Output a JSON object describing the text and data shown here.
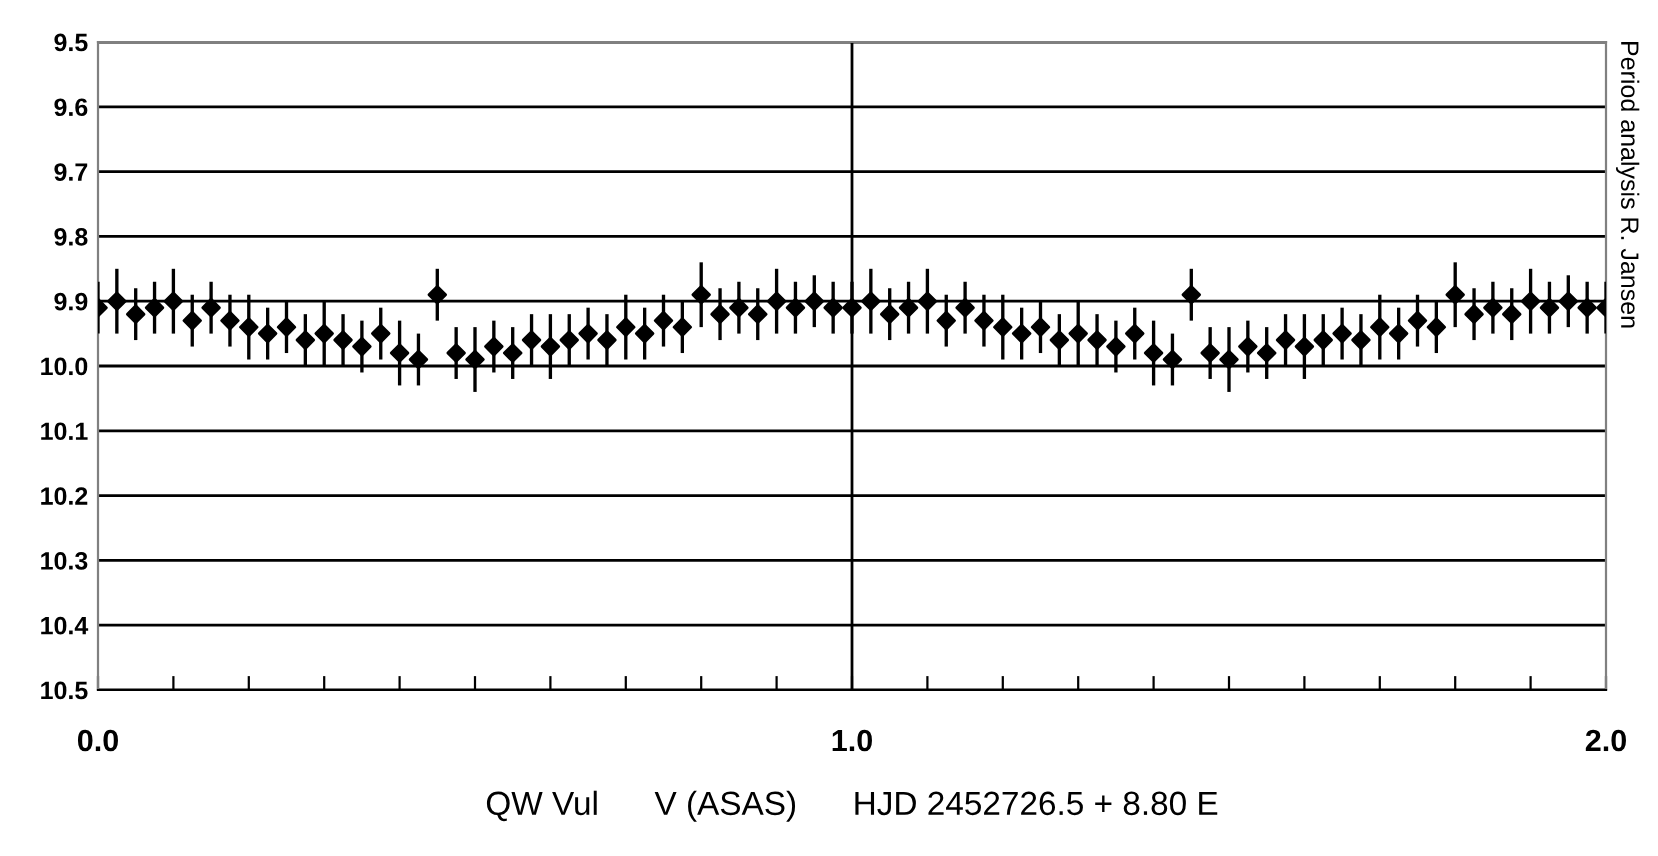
{
  "chart_data": {
    "type": "scatter",
    "xlabel": "QW Vul      V (ASAS)      HJD 2452726.5 + 8.80 E",
    "annotations": [
      "Period analysis R. Jansen"
    ],
    "x": [
      0.0,
      0.025,
      0.05,
      0.075,
      0.1,
      0.125,
      0.15,
      0.175,
      0.2,
      0.225,
      0.25,
      0.275,
      0.3,
      0.325,
      0.35,
      0.375,
      0.4,
      0.425,
      0.45,
      0.475,
      0.5,
      0.525,
      0.55,
      0.575,
      0.6,
      0.625,
      0.65,
      0.675,
      0.7,
      0.725,
      0.75,
      0.775,
      0.8,
      0.825,
      0.85,
      0.875,
      0.9,
      0.925,
      0.95,
      0.975,
      1.0,
      1.025,
      1.05,
      1.075,
      1.1,
      1.125,
      1.15,
      1.175,
      1.2,
      1.225,
      1.25,
      1.275,
      1.3,
      1.325,
      1.35,
      1.375,
      1.4,
      1.425,
      1.45,
      1.475,
      1.5,
      1.525,
      1.55,
      1.575,
      1.6,
      1.625,
      1.65,
      1.675,
      1.7,
      1.725,
      1.75,
      1.775,
      1.8,
      1.825,
      1.85,
      1.875,
      1.9,
      1.925,
      1.95,
      1.975,
      2.0
    ],
    "series": [
      {
        "color": "#000000",
        "values": [
          9.91,
          9.9,
          9.92,
          9.91,
          9.9,
          9.93,
          9.91,
          9.93,
          9.94,
          9.95,
          9.94,
          9.96,
          9.95,
          9.96,
          9.97,
          9.95,
          9.98,
          9.99,
          9.89,
          9.98,
          9.99,
          9.97,
          9.98,
          9.96,
          9.97,
          9.96,
          9.95,
          9.96,
          9.94,
          9.95,
          9.93,
          9.94,
          9.89,
          9.92,
          9.91,
          9.92,
          9.9,
          9.91,
          9.9,
          9.91,
          9.91,
          9.9,
          9.92,
          9.91,
          9.9,
          9.93,
          9.91,
          9.93,
          9.94,
          9.95,
          9.94,
          9.96,
          9.95,
          9.96,
          9.97,
          9.95,
          9.98,
          9.99,
          9.89,
          9.98,
          9.99,
          9.97,
          9.98,
          9.96,
          9.97,
          9.96,
          9.95,
          9.96,
          9.94,
          9.95,
          9.93,
          9.94,
          9.89,
          9.92,
          9.91,
          9.92,
          9.9,
          9.91,
          9.9,
          9.91,
          9.91
        ],
        "errors": [
          0.04,
          0.05,
          0.04,
          0.04,
          0.05,
          0.04,
          0.04,
          0.04,
          0.05,
          0.04,
          0.04,
          0.04,
          0.05,
          0.04,
          0.04,
          0.04,
          0.05,
          0.04,
          0.04,
          0.04,
          0.05,
          0.04,
          0.04,
          0.04,
          0.05,
          0.04,
          0.04,
          0.04,
          0.05,
          0.04,
          0.04,
          0.04,
          0.05,
          0.04,
          0.04,
          0.04,
          0.05,
          0.04,
          0.04,
          0.04,
          0.04,
          0.05,
          0.04,
          0.04,
          0.05,
          0.04,
          0.04,
          0.04,
          0.05,
          0.04,
          0.04,
          0.04,
          0.05,
          0.04,
          0.04,
          0.04,
          0.05,
          0.04,
          0.04,
          0.04,
          0.05,
          0.04,
          0.04,
          0.04,
          0.05,
          0.04,
          0.04,
          0.04,
          0.05,
          0.04,
          0.04,
          0.04,
          0.05,
          0.04,
          0.04,
          0.04,
          0.05,
          0.04,
          0.04,
          0.04,
          0.04
        ]
      }
    ],
    "marker": "diamond",
    "xlim": [
      0.0,
      2.0
    ],
    "xticks": [
      {
        "value": 0.0,
        "label": "0.0"
      },
      {
        "value": 0.1,
        "label": null
      },
      {
        "value": 0.2,
        "label": null
      },
      {
        "value": 0.3,
        "label": null
      },
      {
        "value": 0.4,
        "label": null
      },
      {
        "value": 0.5,
        "label": null
      },
      {
        "value": 0.6,
        "label": null
      },
      {
        "value": 0.7,
        "label": null
      },
      {
        "value": 0.8,
        "label": null
      },
      {
        "value": 0.9,
        "label": null
      },
      {
        "value": 1.0,
        "label": "1.0"
      },
      {
        "value": 1.1,
        "label": null
      },
      {
        "value": 1.2,
        "label": null
      },
      {
        "value": 1.3,
        "label": null
      },
      {
        "value": 1.4,
        "label": null
      },
      {
        "value": 1.5,
        "label": null
      },
      {
        "value": 1.6,
        "label": null
      },
      {
        "value": 1.7,
        "label": null
      },
      {
        "value": 1.8,
        "label": null
      },
      {
        "value": 1.9,
        "label": null
      },
      {
        "value": 2.0,
        "label": "2.0"
      }
    ],
    "ylim": [
      10.5,
      9.5
    ],
    "yticks": [
      {
        "value": 9.5,
        "label": "9.5"
      },
      {
        "value": 9.6,
        "label": "9.6"
      },
      {
        "value": 9.7,
        "label": "9.7"
      },
      {
        "value": 9.8,
        "label": "9.8"
      },
      {
        "value": 9.9,
        "label": "9.9"
      },
      {
        "value": 10.0,
        "label": "10.0"
      },
      {
        "value": 10.1,
        "label": "10.1"
      },
      {
        "value": 10.2,
        "label": "10.2"
      },
      {
        "value": 10.3,
        "label": "10.3"
      },
      {
        "value": 10.4,
        "label": "10.4"
      },
      {
        "value": 10.5,
        "label": "10.5"
      }
    ],
    "grid": "y",
    "ref_lines": [
      {
        "axis": "x",
        "value": 1.0,
        "color": "#000000"
      }
    ]
  }
}
